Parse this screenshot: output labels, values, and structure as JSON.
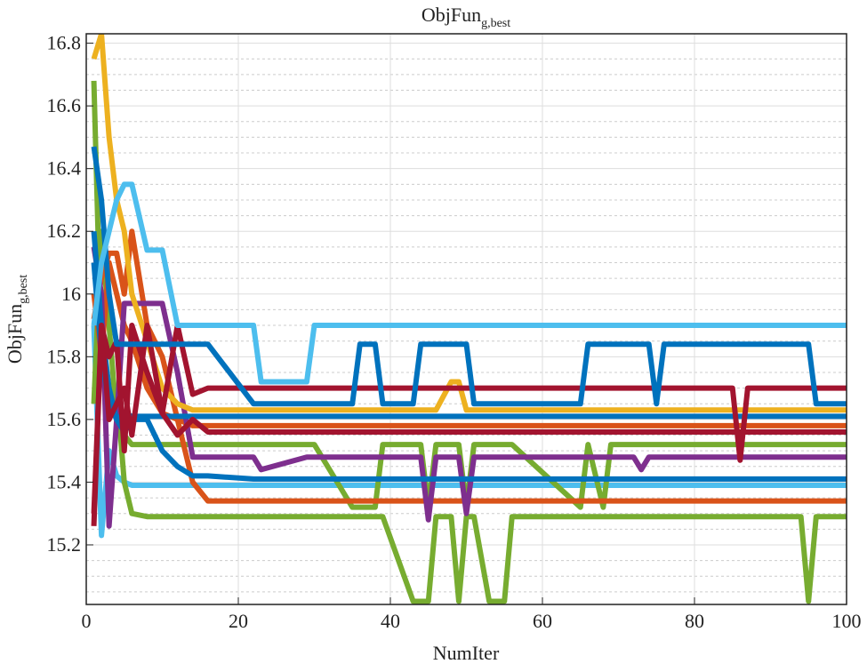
{
  "chart_data": {
    "type": "line",
    "title": "ObjFun",
    "title_subscript": "g,best",
    "xlabel": "NumIter",
    "ylabel": "ObjFun",
    "ylabel_subscript": "g,best",
    "xlim": [
      0,
      100
    ],
    "ylim": [
      15.01,
      16.83
    ],
    "xticks": [
      0,
      20,
      40,
      60,
      80,
      100
    ],
    "yticks": [
      15.2,
      15.4,
      15.6,
      15.8,
      16,
      16.2,
      16.4,
      16.6,
      16.8
    ],
    "yticks_minor": [
      15.05,
      15.1,
      15.15,
      15.25,
      15.3,
      15.35,
      15.45,
      15.5,
      15.55,
      15.65,
      15.7,
      15.75,
      15.85,
      15.9,
      15.95,
      16.05,
      16.1,
      16.15,
      16.25,
      16.3,
      16.35,
      16.45,
      16.5,
      16.55,
      16.65,
      16.7,
      16.75
    ],
    "grid": true,
    "x": [
      1,
      2,
      3,
      4,
      5,
      6,
      8,
      10,
      12,
      14,
      16,
      22,
      23,
      29,
      30,
      35,
      36,
      38,
      39,
      43,
      44,
      45,
      46,
      48,
      49,
      50,
      51,
      53,
      55,
      56,
      65,
      66,
      68,
      69,
      72,
      73,
      74,
      75,
      76,
      85,
      86,
      87,
      94,
      95,
      96,
      100
    ],
    "series": [
      {
        "color": "#4dbeee",
        "values": [
          15.9,
          15.23,
          15.5,
          15.42,
          15.4,
          15.39,
          15.39,
          15.39,
          15.39,
          15.39,
          15.39,
          15.39,
          15.39,
          15.39,
          15.39,
          15.39,
          15.39,
          15.39,
          15.39,
          15.39,
          15.39,
          15.39,
          15.39,
          15.39,
          15.39,
          15.39,
          15.39,
          15.39,
          15.39,
          15.39,
          15.39,
          15.39,
          15.39,
          15.39,
          15.39,
          15.39,
          15.39,
          15.39,
          15.39,
          15.39,
          15.39,
          15.39,
          15.39,
          15.39,
          15.39,
          15.39
        ]
      },
      {
        "color": "#77ac30",
        "values": [
          16.68,
          15.8,
          15.6,
          15.7,
          15.4,
          15.3,
          15.29,
          15.29,
          15.29,
          15.29,
          15.29,
          15.29,
          15.29,
          15.29,
          15.29,
          15.29,
          15.29,
          15.29,
          15.29,
          15.02,
          15.02,
          15.02,
          15.29,
          15.29,
          15.02,
          15.29,
          15.29,
          15.02,
          15.02,
          15.29,
          15.29,
          15.29,
          15.29,
          15.29,
          15.29,
          15.29,
          15.29,
          15.29,
          15.29,
          15.29,
          15.29,
          15.29,
          15.29,
          15.02,
          15.29,
          15.29
        ]
      },
      {
        "color": "#77ac30",
        "values": [
          15.65,
          16.2,
          15.9,
          15.6,
          15.55,
          15.52,
          15.52,
          15.52,
          15.52,
          15.52,
          15.52,
          15.52,
          15.52,
          15.52,
          15.52,
          15.32,
          15.32,
          15.32,
          15.52,
          15.52,
          15.52,
          15.32,
          15.52,
          15.52,
          15.52,
          15.32,
          15.52,
          15.52,
          15.52,
          15.52,
          15.32,
          15.52,
          15.32,
          15.52,
          15.52,
          15.52,
          15.52,
          15.52,
          15.52,
          15.52,
          15.52,
          15.52,
          15.52,
          15.52,
          15.52,
          15.52
        ]
      },
      {
        "color": "#d95319",
        "values": [
          15.92,
          16.05,
          16.13,
          16.13,
          16.0,
          16.2,
          15.9,
          15.8,
          15.6,
          15.4,
          15.34,
          15.34,
          15.34,
          15.34,
          15.34,
          15.34,
          15.34,
          15.34,
          15.34,
          15.34,
          15.34,
          15.34,
          15.34,
          15.34,
          15.34,
          15.34,
          15.34,
          15.34,
          15.34,
          15.34,
          15.34,
          15.34,
          15.34,
          15.34,
          15.34,
          15.34,
          15.34,
          15.34,
          15.34,
          15.34,
          15.34,
          15.34,
          15.34,
          15.34,
          15.34,
          15.34
        ]
      },
      {
        "color": "#d95319",
        "values": [
          16.0,
          15.8,
          16.1,
          16.0,
          15.9,
          15.85,
          15.7,
          15.62,
          15.6,
          15.58,
          15.58,
          15.58,
          15.58,
          15.58,
          15.58,
          15.58,
          15.58,
          15.58,
          15.58,
          15.58,
          15.58,
          15.58,
          15.58,
          15.58,
          15.58,
          15.58,
          15.58,
          15.58,
          15.58,
          15.58,
          15.58,
          15.58,
          15.58,
          15.58,
          15.58,
          15.58,
          15.58,
          15.58,
          15.58,
          15.58,
          15.58,
          15.58,
          15.58,
          15.58,
          15.58,
          15.58
        ]
      },
      {
        "color": "#7e2f8e",
        "values": [
          16.15,
          16.0,
          15.26,
          15.6,
          15.97,
          15.97,
          15.97,
          15.97,
          15.75,
          15.48,
          15.48,
          15.48,
          15.44,
          15.48,
          15.48,
          15.48,
          15.48,
          15.48,
          15.48,
          15.48,
          15.48,
          15.28,
          15.48,
          15.48,
          15.48,
          15.3,
          15.48,
          15.48,
          15.48,
          15.48,
          15.48,
          15.48,
          15.48,
          15.48,
          15.48,
          15.44,
          15.48,
          15.48,
          15.48,
          15.48,
          15.48,
          15.48,
          15.48,
          15.48,
          15.48,
          15.48
        ]
      },
      {
        "color": "#0072bd",
        "values": [
          16.2,
          15.9,
          15.7,
          15.6,
          15.56,
          15.6,
          15.6,
          15.5,
          15.45,
          15.42,
          15.42,
          15.41,
          15.41,
          15.41,
          15.41,
          15.41,
          15.41,
          15.41,
          15.41,
          15.41,
          15.41,
          15.41,
          15.41,
          15.41,
          15.41,
          15.41,
          15.41,
          15.41,
          15.41,
          15.41,
          15.41,
          15.41,
          15.41,
          15.41,
          15.41,
          15.41,
          15.41,
          15.41,
          15.41,
          15.41,
          15.41,
          15.41,
          15.41,
          15.41,
          15.41,
          15.41
        ]
      },
      {
        "color": "#0072bd",
        "values": [
          16.1,
          15.8,
          15.65,
          15.6,
          15.62,
          15.61,
          15.61,
          15.61,
          15.61,
          15.61,
          15.61,
          15.61,
          15.61,
          15.61,
          15.61,
          15.61,
          15.61,
          15.61,
          15.61,
          15.61,
          15.61,
          15.61,
          15.61,
          15.61,
          15.61,
          15.61,
          15.61,
          15.61,
          15.61,
          15.61,
          15.61,
          15.61,
          15.61,
          15.61,
          15.61,
          15.61,
          15.61,
          15.61,
          15.61,
          15.61,
          15.61,
          15.61,
          15.61,
          15.61,
          15.61,
          15.61
        ]
      },
      {
        "color": "#edb120",
        "values": [
          16.75,
          16.83,
          16.5,
          16.3,
          16.2,
          16.0,
          15.85,
          15.7,
          15.65,
          15.63,
          15.63,
          15.63,
          15.63,
          15.63,
          15.63,
          15.63,
          15.63,
          15.63,
          15.63,
          15.63,
          15.63,
          15.63,
          15.63,
          15.72,
          15.72,
          15.63,
          15.63,
          15.63,
          15.63,
          15.63,
          15.63,
          15.63,
          15.63,
          15.63,
          15.63,
          15.63,
          15.63,
          15.63,
          15.63,
          15.63,
          15.63,
          15.63,
          15.63,
          15.63,
          15.63,
          15.63
        ]
      },
      {
        "color": "#a2142f",
        "values": [
          15.3,
          15.9,
          15.6,
          15.65,
          15.7,
          15.55,
          15.9,
          15.62,
          15.55,
          15.6,
          15.56,
          15.56,
          15.56,
          15.56,
          15.56,
          15.56,
          15.56,
          15.56,
          15.56,
          15.56,
          15.56,
          15.56,
          15.56,
          15.56,
          15.56,
          15.56,
          15.56,
          15.56,
          15.56,
          15.56,
          15.56,
          15.56,
          15.56,
          15.56,
          15.56,
          15.56,
          15.56,
          15.56,
          15.56,
          15.56,
          15.56,
          15.56,
          15.56,
          15.56,
          15.56,
          15.56
        ]
      },
      {
        "color": "#a2142f",
        "values": [
          15.26,
          15.9,
          15.8,
          15.85,
          15.5,
          15.9,
          15.75,
          15.62,
          15.9,
          15.68,
          15.7,
          15.7,
          15.7,
          15.7,
          15.7,
          15.7,
          15.7,
          15.7,
          15.7,
          15.7,
          15.7,
          15.7,
          15.7,
          15.7,
          15.7,
          15.7,
          15.7,
          15.7,
          15.7,
          15.7,
          15.7,
          15.7,
          15.7,
          15.7,
          15.7,
          15.7,
          15.7,
          15.7,
          15.7,
          15.7,
          15.47,
          15.7,
          15.7,
          15.7,
          15.7,
          15.7
        ]
      },
      {
        "color": "#0072bd",
        "values": [
          16.47,
          16.3,
          16.0,
          15.84,
          15.84,
          15.84,
          15.84,
          15.84,
          15.84,
          15.84,
          15.84,
          15.65,
          15.65,
          15.65,
          15.65,
          15.65,
          15.84,
          15.84,
          15.65,
          15.65,
          15.84,
          15.84,
          15.84,
          15.84,
          15.84,
          15.84,
          15.65,
          15.65,
          15.65,
          15.65,
          15.65,
          15.84,
          15.84,
          15.84,
          15.84,
          15.84,
          15.84,
          15.65,
          15.84,
          15.84,
          15.84,
          15.84,
          15.84,
          15.84,
          15.65,
          15.65
        ]
      },
      {
        "color": "#4dbeee",
        "values": [
          15.9,
          16.1,
          16.2,
          16.3,
          16.35,
          16.35,
          16.14,
          16.14,
          15.9,
          15.9,
          15.9,
          15.9,
          15.72,
          15.72,
          15.9,
          15.9,
          15.9,
          15.9,
          15.9,
          15.9,
          15.9,
          15.9,
          15.9,
          15.9,
          15.9,
          15.9,
          15.9,
          15.9,
          15.9,
          15.9,
          15.9,
          15.9,
          15.9,
          15.9,
          15.9,
          15.9,
          15.9,
          15.9,
          15.9,
          15.9,
          15.9,
          15.9,
          15.9,
          15.9,
          15.9,
          15.9
        ]
      }
    ]
  }
}
